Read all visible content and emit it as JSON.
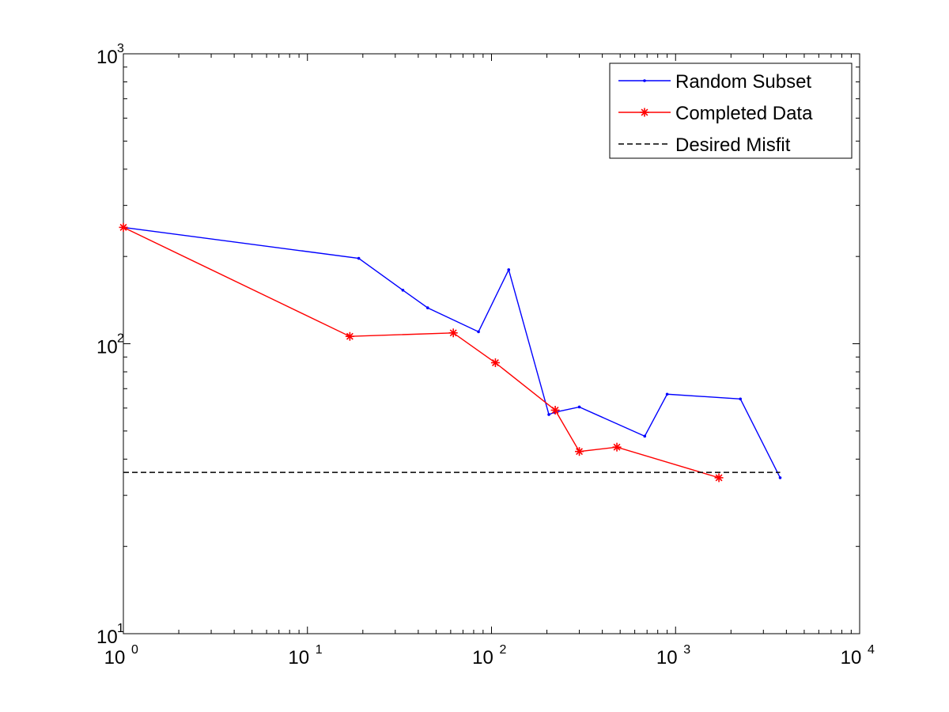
{
  "chart_data": {
    "type": "line",
    "title": "",
    "xlabel": "",
    "ylabel": "",
    "x_scale": "log",
    "y_scale": "log",
    "xlim": [
      1,
      10000
    ],
    "ylim": [
      10,
      1000
    ],
    "grid": false,
    "legend_position": "top-right",
    "x_ticks": [
      {
        "base": "10",
        "exp": "0",
        "value": 1
      },
      {
        "base": "10",
        "exp": "1",
        "value": 10
      },
      {
        "base": "10",
        "exp": "2",
        "value": 100
      },
      {
        "base": "10",
        "exp": "3",
        "value": 1000
      },
      {
        "base": "10",
        "exp": "4",
        "value": 10000
      }
    ],
    "y_ticks": [
      {
        "base": "10",
        "exp": "1",
        "value": 10
      },
      {
        "base": "10",
        "exp": "2",
        "value": 100
      },
      {
        "base": "10",
        "exp": "3",
        "value": 1000
      }
    ],
    "series": [
      {
        "name": "Random Subset",
        "color": "#0000ff",
        "style": "solid",
        "marker": "dot",
        "points": [
          [
            1,
            252
          ],
          [
            19,
            197
          ],
          [
            33,
            153
          ],
          [
            45,
            133
          ],
          [
            85,
            110
          ],
          [
            124,
            180
          ],
          [
            205,
            57
          ],
          [
            220,
            58
          ],
          [
            300,
            60.5
          ],
          [
            680,
            48
          ],
          [
            900,
            67
          ],
          [
            2250,
            64.5
          ],
          [
            3700,
            34.5
          ]
        ]
      },
      {
        "name": "Completed Data",
        "color": "#ff0000",
        "style": "solid",
        "marker": "asterisk",
        "points": [
          [
            1,
            252
          ],
          [
            17,
            106
          ],
          [
            62,
            109
          ],
          [
            105,
            86
          ],
          [
            222,
            59
          ],
          [
            300,
            42.5
          ],
          [
            480,
            44
          ],
          [
            1720,
            34.5
          ]
        ]
      },
      {
        "name": "Desired Misfit",
        "color": "#000000",
        "style": "dashed",
        "marker": "none",
        "points": [
          [
            1,
            36
          ],
          [
            3700,
            36
          ]
        ]
      }
    ]
  }
}
